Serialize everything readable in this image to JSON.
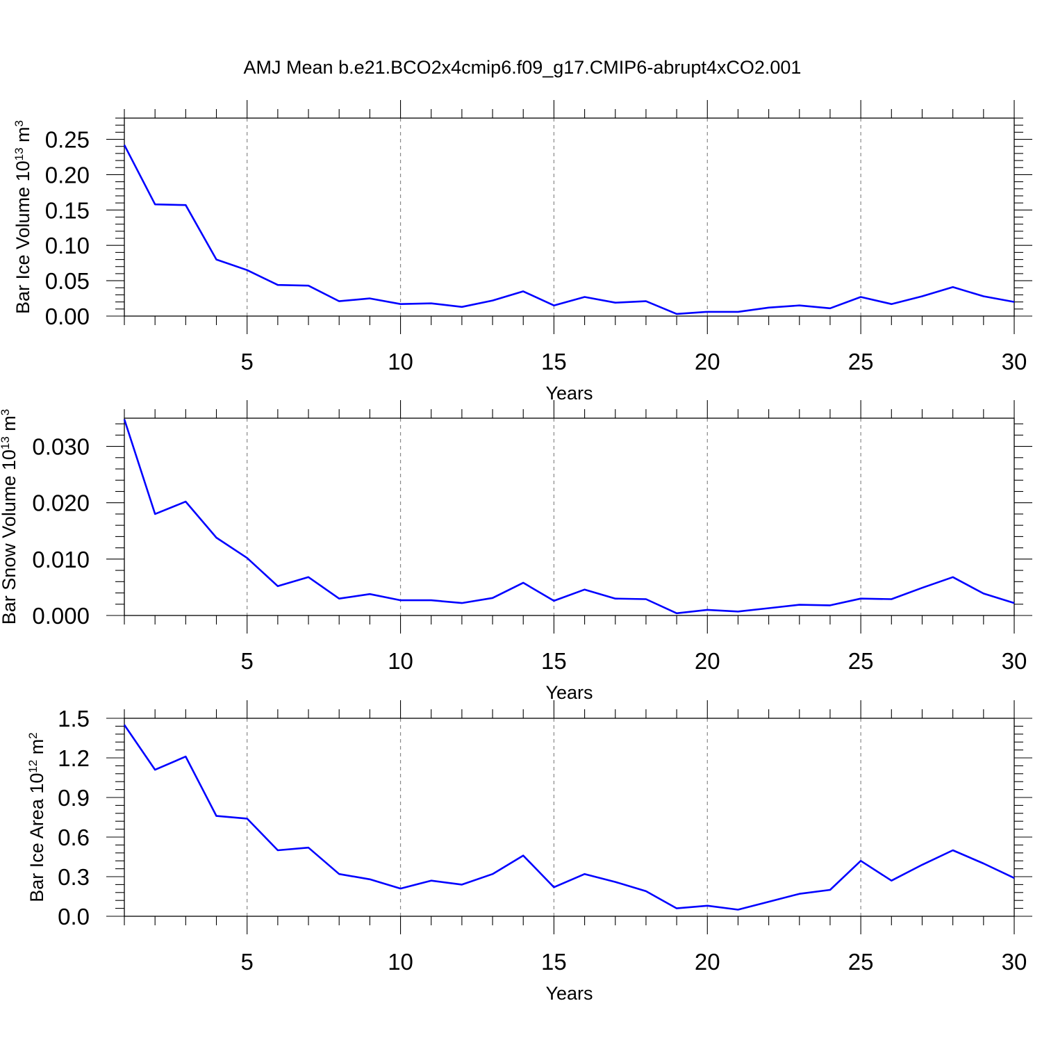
{
  "chart_title": "AMJ Mean b.e21.BCO2x4cmip6.f09_g17.CMIP6-abrupt4xCO2.001",
  "chart_data": [
    {
      "type": "line",
      "title": "AMJ Mean b.e21.BCO2x4cmip6.f09_g17.CMIP6-abrupt4xCO2.001",
      "xlabel": "Years",
      "ylabel_main": "Bar Ice Volume 10",
      "ylabel_exp": "13",
      "ylabel_unit": " m",
      "ylabel_unit_exp": "3",
      "xlim": [
        1,
        30
      ],
      "ylim": [
        0,
        0.28
      ],
      "grid": "dashed vertical at major x ticks",
      "x": [
        1,
        2,
        3,
        4,
        5,
        6,
        7,
        8,
        9,
        10,
        11,
        12,
        13,
        14,
        15,
        16,
        17,
        18,
        19,
        20,
        21,
        22,
        23,
        24,
        25,
        26,
        27,
        28,
        29,
        30
      ],
      "x_ticks": [
        "5",
        "10",
        "15",
        "20",
        "25",
        "30"
      ],
      "y_ticks": [
        "0.00",
        "0.05",
        "0.10",
        "0.15",
        "0.20",
        "0.25"
      ],
      "series": [
        {
          "name": "Bar Ice Volume",
          "color": "#0000ff",
          "values": [
            0.242,
            0.158,
            0.157,
            0.08,
            0.065,
            0.044,
            0.043,
            0.021,
            0.025,
            0.017,
            0.018,
            0.013,
            0.022,
            0.035,
            0.015,
            0.027,
            0.019,
            0.021,
            0.003,
            0.006,
            0.006,
            0.012,
            0.015,
            0.011,
            0.027,
            0.017,
            0.028,
            0.041,
            0.028,
            0.02
          ]
        }
      ]
    },
    {
      "type": "line",
      "title": "",
      "xlabel": "Years",
      "ylabel_main": "Bar Snow Volume 10",
      "ylabel_exp": "13",
      "ylabel_unit": " m",
      "ylabel_unit_exp": "3",
      "xlim": [
        1,
        30
      ],
      "ylim": [
        0,
        0.035
      ],
      "grid": "dashed vertical at major x ticks",
      "x": [
        1,
        2,
        3,
        4,
        5,
        6,
        7,
        8,
        9,
        10,
        11,
        12,
        13,
        14,
        15,
        16,
        17,
        18,
        19,
        20,
        21,
        22,
        23,
        24,
        25,
        26,
        27,
        28,
        29,
        30
      ],
      "x_ticks": [
        "5",
        "10",
        "15",
        "20",
        "25",
        "30"
      ],
      "y_ticks": [
        "0.000",
        "0.010",
        "0.020",
        "0.030"
      ],
      "series": [
        {
          "name": "Bar Snow Volume",
          "color": "#0000ff",
          "values": [
            0.0348,
            0.018,
            0.0202,
            0.0138,
            0.0102,
            0.0052,
            0.0068,
            0.003,
            0.0038,
            0.0027,
            0.0027,
            0.0022,
            0.0031,
            0.0058,
            0.0026,
            0.0046,
            0.003,
            0.0029,
            0.0004,
            0.001,
            0.0007,
            0.0013,
            0.0019,
            0.0018,
            0.003,
            0.0029,
            0.0049,
            0.0068,
            0.0039,
            0.0022
          ]
        }
      ]
    },
    {
      "type": "line",
      "title": "",
      "xlabel": "Years",
      "ylabel_main": "Bar Ice Area 10",
      "ylabel_exp": "12",
      "ylabel_unit": " m",
      "ylabel_unit_exp": "2",
      "xlim": [
        1,
        30
      ],
      "ylim": [
        0,
        1.5
      ],
      "grid": "dashed vertical at major x ticks",
      "x": [
        1,
        2,
        3,
        4,
        5,
        6,
        7,
        8,
        9,
        10,
        11,
        12,
        13,
        14,
        15,
        16,
        17,
        18,
        19,
        20,
        21,
        22,
        23,
        24,
        25,
        26,
        27,
        28,
        29,
        30
      ],
      "x_ticks": [
        "5",
        "10",
        "15",
        "20",
        "25",
        "30"
      ],
      "y_ticks": [
        "0.0",
        "0.3",
        "0.6",
        "0.9",
        "1.2",
        "1.5"
      ],
      "series": [
        {
          "name": "Bar Ice Area",
          "color": "#0000ff",
          "values": [
            1.45,
            1.11,
            1.21,
            0.76,
            0.74,
            0.5,
            0.52,
            0.32,
            0.28,
            0.21,
            0.27,
            0.24,
            0.32,
            0.46,
            0.22,
            0.32,
            0.26,
            0.19,
            0.06,
            0.08,
            0.05,
            0.11,
            0.17,
            0.2,
            0.42,
            0.27,
            0.39,
            0.5,
            0.4,
            0.29
          ]
        }
      ]
    }
  ]
}
